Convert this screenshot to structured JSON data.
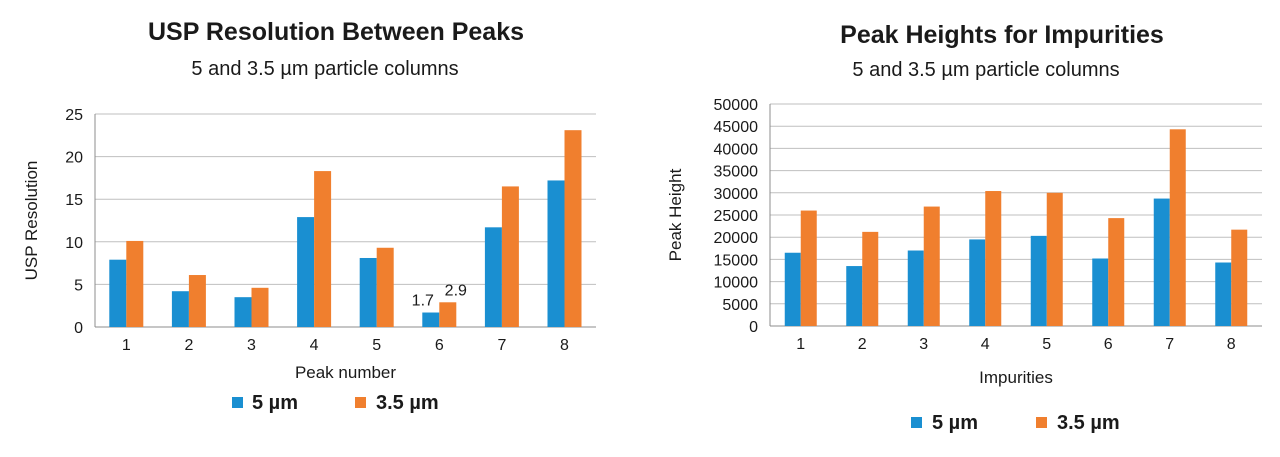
{
  "colors": {
    "series_5um": "#1a8fd1",
    "series_3_5um": "#f07f2e"
  },
  "chart_data": [
    {
      "type": "bar",
      "title": "USP Resolution Between Peaks",
      "subtitle": "5 and 3.5 µm particle columns",
      "xlabel": "Peak number",
      "ylabel": "USP Resolution",
      "categories": [
        "1",
        "2",
        "3",
        "4",
        "5",
        "6",
        "7",
        "8"
      ],
      "yticks": [
        "0",
        "5",
        "10",
        "15",
        "20",
        "25"
      ],
      "ylim": [
        0,
        25
      ],
      "grid": true,
      "legend": "bottom",
      "series": [
        {
          "name": "5 µm",
          "values": [
            7.9,
            4.2,
            3.5,
            12.9,
            8.1,
            1.7,
            11.7,
            17.2
          ]
        },
        {
          "name": "3.5 µm",
          "values": [
            10.1,
            6.1,
            4.6,
            18.3,
            9.3,
            2.9,
            16.5,
            23.1
          ]
        }
      ],
      "annotations": [
        {
          "text": "1.7",
          "series": 0,
          "category": "6"
        },
        {
          "text": "2.9",
          "series": 1,
          "category": "6"
        }
      ]
    },
    {
      "type": "bar",
      "title": "Peak Heights for Impurities",
      "subtitle": "5 and 3.5 µm particle columns",
      "xlabel": "Impurities",
      "ylabel": "Peak Height",
      "categories": [
        "1",
        "2",
        "3",
        "4",
        "5",
        "6",
        "7",
        "8"
      ],
      "yticks": [
        "0",
        "5000",
        "10000",
        "15000",
        "20000",
        "25000",
        "30000",
        "35000",
        "40000",
        "45000",
        "50000"
      ],
      "ylim": [
        0,
        50000
      ],
      "grid": true,
      "legend": "bottom",
      "series": [
        {
          "name": "5 µm",
          "values": [
            16500,
            13500,
            17000,
            19500,
            20300,
            15200,
            28700,
            14300
          ]
        },
        {
          "name": "3.5 µm",
          "values": [
            26000,
            21200,
            26900,
            30400,
            30000,
            24300,
            44300,
            21700
          ]
        }
      ],
      "annotations": []
    }
  ]
}
